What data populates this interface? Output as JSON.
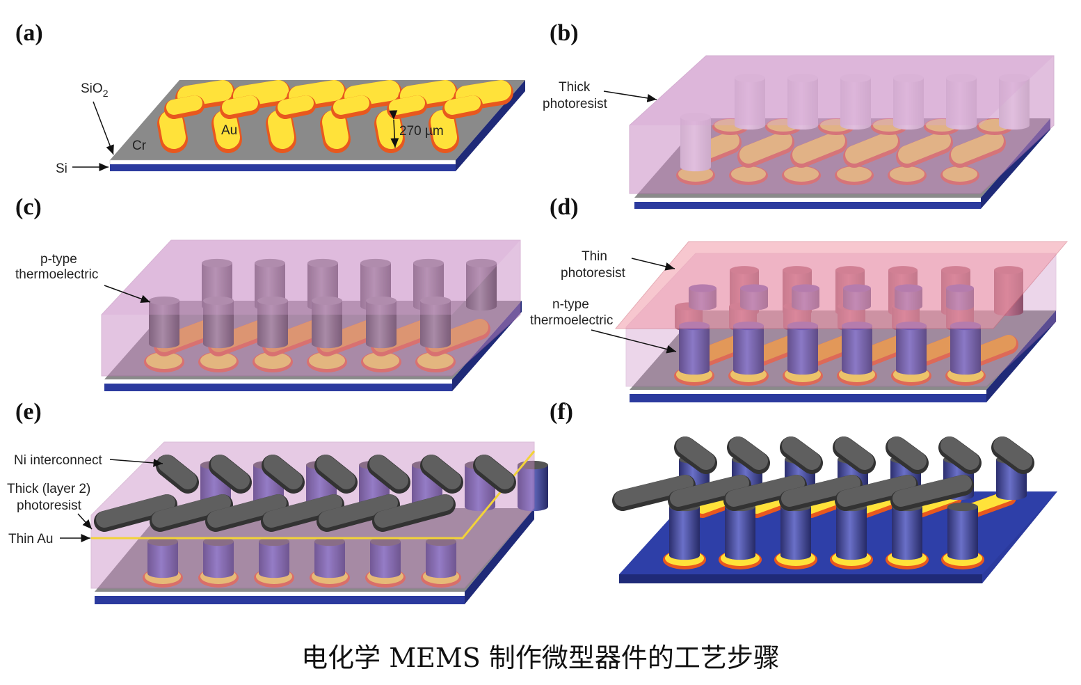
{
  "panels": [
    {
      "id": "a",
      "tag": "(a)"
    },
    {
      "id": "b",
      "tag": "(b)"
    },
    {
      "id": "c",
      "tag": "(c)"
    },
    {
      "id": "d",
      "tag": "(d)"
    },
    {
      "id": "e",
      "tag": "(e)"
    },
    {
      "id": "f",
      "tag": "(f)"
    }
  ],
  "labels": {
    "sio2_main": "SiO",
    "sio2_sub": "2",
    "si": "Si",
    "cr": "Cr",
    "au": "Au",
    "dimension": "270 µm",
    "thick_pr_1": "Thick",
    "thick_pr_2": "photoresist",
    "ptype_1": "p-type",
    "ptype_2": "thermoelectric",
    "thin_pr_1": "Thin",
    "thin_pr_2": "photoresist",
    "ntype_1": "n-type",
    "ntype_2": "thermoelectric",
    "ni_interconnect": "Ni interconnect",
    "thick_l2_1": "Thick (layer 2)",
    "thick_l2_2": "photoresist",
    "thin_au": "Thin Au"
  },
  "caption": "电化学 MEMS 制作微型器件的工艺步骤",
  "colors": {
    "substrate_blue": "#2b3a9e",
    "substrate_edge": "#1f2a78",
    "oxide_gray": "#8a8a8a",
    "gold": "#ffe23a",
    "chrome_orange": "#e8581e",
    "photoresist_pink": "#c98bc4",
    "thin_pr_pink": "#f29aa8",
    "ptype_gray": "#5c5c5c",
    "ntype_blue": "#4a4f9e",
    "ni_gray": "#5f5f5f"
  }
}
